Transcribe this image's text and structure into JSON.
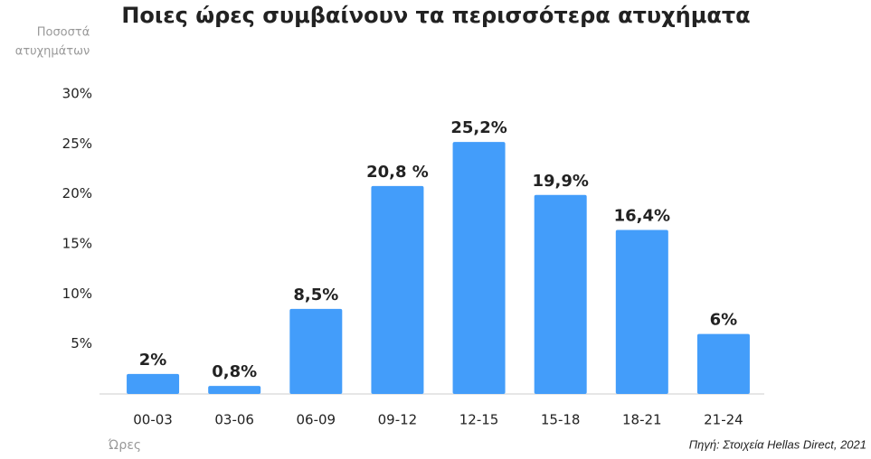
{
  "chart_data": {
    "type": "bar",
    "title": "Ποιες ώρες συμβαίνουν τα περισσότερα ατυχήματα",
    "ylabel": [
      "Ποσοστά",
      "ατυχημάτων"
    ],
    "xlabel": "Ώρες",
    "source": "Πηγή: Στοιχεία Hellas Direct, 2021",
    "categories": [
      "00-03",
      "03-06",
      "06-09",
      "09-12",
      "12-15",
      "15-18",
      "18-21",
      "21-24"
    ],
    "values": [
      2,
      0.8,
      8.5,
      20.8,
      25.2,
      19.9,
      16.4,
      6
    ],
    "value_labels": [
      "2%",
      "0,8%",
      "8,5%",
      "20,8 %",
      "25,2%",
      "19,9%",
      "16,4%",
      "6%"
    ],
    "color": "#439dfa",
    "ylim": [
      0,
      30
    ],
    "yticks": [
      {
        "value": 5,
        "label": "5%"
      },
      {
        "value": 10,
        "label": "10%"
      },
      {
        "value": 15,
        "label": "15%"
      },
      {
        "value": 20,
        "label": "20%"
      },
      {
        "value": 25,
        "label": "25%"
      },
      {
        "value": 30,
        "label": "30%"
      }
    ],
    "grid": false
  }
}
